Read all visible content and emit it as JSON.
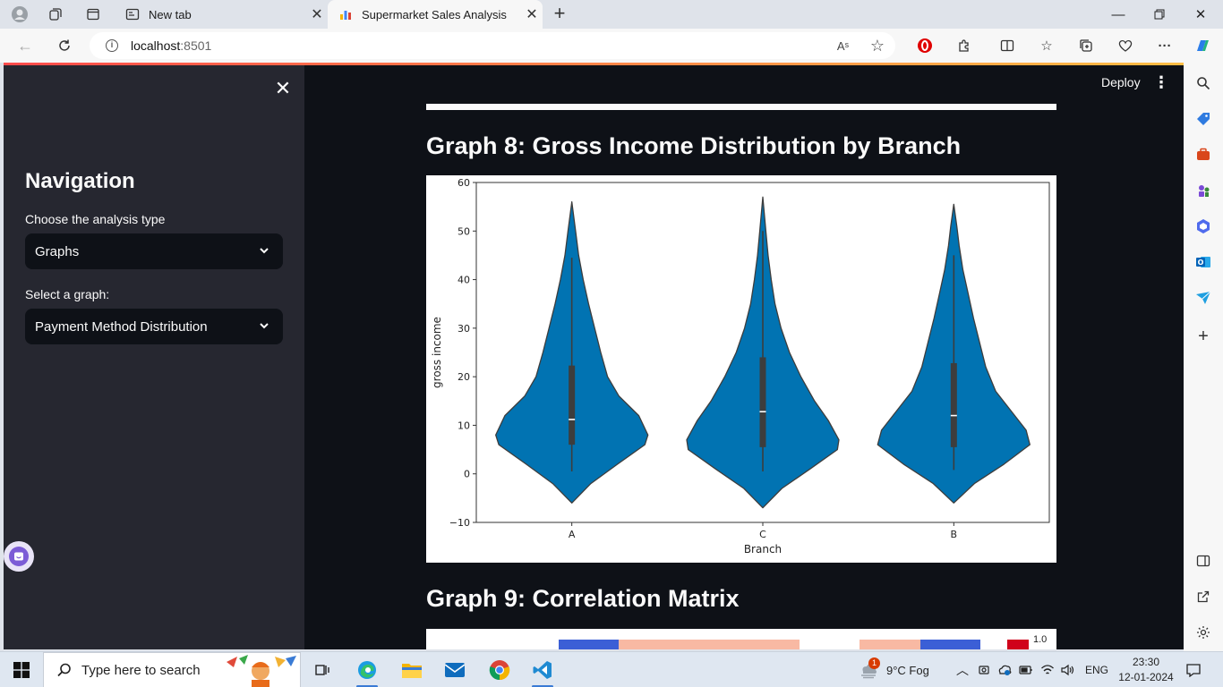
{
  "browser": {
    "tabs": [
      {
        "label": "New tab",
        "icon": "new-tab-icon",
        "active": false
      },
      {
        "label": "Supermarket Sales Analysis",
        "icon": "streamlit-chart-icon",
        "active": true
      }
    ],
    "url_host": "localhost",
    "url_port": ":8501",
    "read_aloud": "Aˢ"
  },
  "sidebar": {
    "title": "Navigation",
    "analysis_label": "Choose the analysis type",
    "analysis_value": "Graphs",
    "graph_label": "Select a graph:",
    "graph_value": "Payment Method Distribution"
  },
  "header": {
    "deploy_label": "Deploy"
  },
  "main": {
    "graph8_title": "Graph 8: Gross Income Distribution by Branch",
    "graph9_title": "Graph 9: Correlation Matrix",
    "corr_colorbar_tick": "1.0"
  },
  "chart_data": {
    "type": "violin",
    "title": "",
    "xlabel": "Branch",
    "ylabel": "gross income",
    "categories": [
      "A",
      "C",
      "B"
    ],
    "ylim": [
      -10,
      60
    ],
    "yticks": [
      -10,
      0,
      10,
      20,
      30,
      40,
      50,
      60
    ],
    "ytick_labels": [
      "−10",
      "0",
      "10",
      "20",
      "30",
      "40",
      "50",
      "60"
    ],
    "violin_color": "#0173b2",
    "series": [
      {
        "category": "A",
        "min": -6,
        "max": 56,
        "q1": 6,
        "median": 11.2,
        "q3": 22.3,
        "whisker_low": 0.5,
        "whisker_high": 44.5,
        "profile": [
          [
            -6,
            0
          ],
          [
            -2,
            0.25
          ],
          [
            2,
            0.6
          ],
          [
            6,
            0.96
          ],
          [
            8,
            1.0
          ],
          [
            12,
            0.88
          ],
          [
            16,
            0.62
          ],
          [
            20,
            0.47
          ],
          [
            25,
            0.38
          ],
          [
            30,
            0.3
          ],
          [
            35,
            0.22
          ],
          [
            40,
            0.15
          ],
          [
            45,
            0.09
          ],
          [
            50,
            0.05
          ],
          [
            56,
            0
          ]
        ]
      },
      {
        "category": "C",
        "min": -7,
        "max": 57,
        "q1": 5.5,
        "median": 12.8,
        "q3": 24,
        "whisker_low": 0.5,
        "whisker_high": 50,
        "profile": [
          [
            -7,
            0
          ],
          [
            -3,
            0.25
          ],
          [
            1,
            0.62
          ],
          [
            5,
            0.98
          ],
          [
            7,
            1.0
          ],
          [
            11,
            0.86
          ],
          [
            15,
            0.68
          ],
          [
            20,
            0.5
          ],
          [
            25,
            0.35
          ],
          [
            30,
            0.24
          ],
          [
            35,
            0.16
          ],
          [
            40,
            0.11
          ],
          [
            45,
            0.07
          ],
          [
            50,
            0.04
          ],
          [
            57,
            0
          ]
        ]
      },
      {
        "category": "B",
        "min": -6,
        "max": 55.5,
        "q1": 5.5,
        "median": 12,
        "q3": 22.8,
        "whisker_low": 0.8,
        "whisker_high": 45,
        "profile": [
          [
            -6,
            0
          ],
          [
            -2,
            0.27
          ],
          [
            2,
            0.66
          ],
          [
            6,
            1.0
          ],
          [
            9,
            0.95
          ],
          [
            13,
            0.75
          ],
          [
            17,
            0.55
          ],
          [
            22,
            0.42
          ],
          [
            27,
            0.34
          ],
          [
            32,
            0.26
          ],
          [
            37,
            0.19
          ],
          [
            42,
            0.12
          ],
          [
            47,
            0.07
          ],
          [
            51,
            0.04
          ],
          [
            55.5,
            0
          ]
        ]
      }
    ]
  },
  "taskbar": {
    "search_placeholder": "Type here to search",
    "weather": "9°C  Fog",
    "weather_badge": "1",
    "language": "ENG",
    "time": "23:30",
    "date": "12-01-2024"
  }
}
